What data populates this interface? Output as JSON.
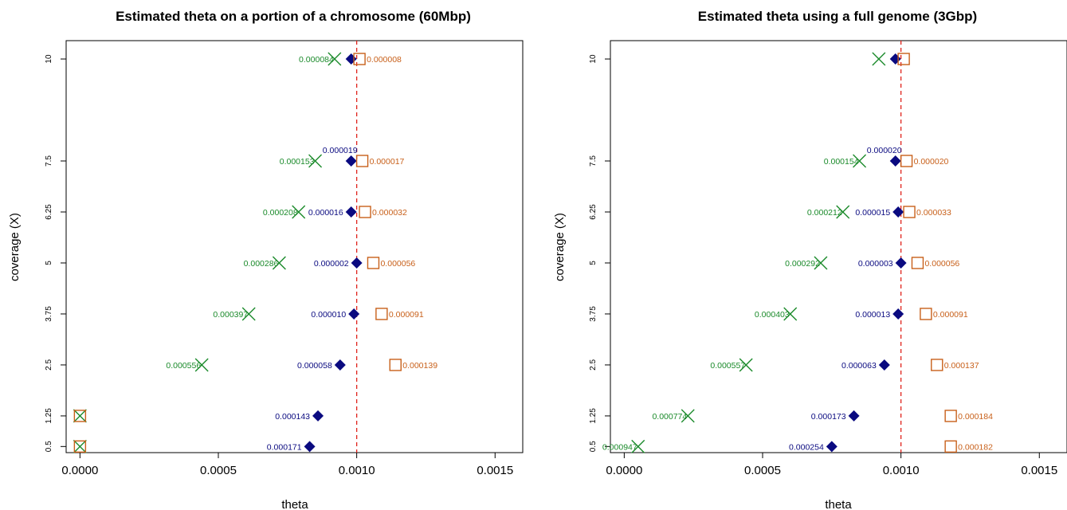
{
  "colors": {
    "green": "#1a8a2a",
    "blue": "#1a1aa0",
    "navy": "#0a0a80",
    "orange": "#c8601a",
    "reference": "#e0231c"
  },
  "chart_data": [
    {
      "type": "scatter",
      "title": "Estimated theta on a portion of a chromosome (60Mbp)",
      "xlabel": "theta",
      "ylabel": "coverage (X)",
      "xlim": [
        -5e-05,
        0.0016
      ],
      "ylim": [
        0.35,
        10.45
      ],
      "xticks": [
        0.0,
        0.0005,
        0.001,
        0.0015
      ],
      "xtick_labels": [
        "0.0000",
        "0.0005",
        "0.0010",
        "0.0015"
      ],
      "yticks": [
        0.5,
        1.25,
        2.5,
        3.75,
        5,
        6.25,
        7.5,
        10
      ],
      "ytick_labels": [
        "0.5",
        "1.25",
        "2.5",
        "3.75",
        "5",
        "6.25",
        "7.5",
        "10"
      ],
      "reference_line": {
        "x": 0.001,
        "style": "dashed"
      },
      "series": [
        {
          "marker": "x",
          "color_key": "green",
          "points": [
            {
              "y": 10,
              "x": 0.00092,
              "label": "0.000084"
            },
            {
              "y": 7.5,
              "x": 0.00085,
              "label": "0.000153"
            },
            {
              "y": 6.25,
              "x": 0.00079,
              "label": "0.000208"
            },
            {
              "y": 5,
              "x": 0.00072,
              "label": "0.000286"
            },
            {
              "y": 3.75,
              "x": 0.00061,
              "label": "0.000397"
            },
            {
              "y": 2.5,
              "x": 0.00044,
              "label": "0.000556"
            },
            {
              "y": 1.25,
              "x": 0.0,
              "label": ""
            },
            {
              "y": 0.5,
              "x": 0.0,
              "label": ""
            }
          ]
        },
        {
          "marker": "diamond",
          "color_key": "navy",
          "points": [
            {
              "y": 10,
              "x": 0.00098,
              "label": ""
            },
            {
              "y": 7.5,
              "x": 0.00098,
              "label": "0.000019"
            },
            {
              "y": 6.25,
              "x": 0.00098,
              "label": "0.000016"
            },
            {
              "y": 5,
              "x": 0.001,
              "label": "0.000002"
            },
            {
              "y": 3.75,
              "x": 0.00099,
              "label": "0.000010"
            },
            {
              "y": 2.5,
              "x": 0.00094,
              "label": "0.000058"
            },
            {
              "y": 1.25,
              "x": 0.00086,
              "label": "0.000143"
            },
            {
              "y": 0.5,
              "x": 0.00083,
              "label": "0.000171"
            }
          ]
        },
        {
          "marker": "square",
          "color_key": "orange",
          "points": [
            {
              "y": 10,
              "x": 0.00101,
              "label": "0.000008"
            },
            {
              "y": 7.5,
              "x": 0.00102,
              "label": "0.000017"
            },
            {
              "y": 6.25,
              "x": 0.00103,
              "label": "0.000032"
            },
            {
              "y": 5,
              "x": 0.00106,
              "label": "0.000056"
            },
            {
              "y": 3.75,
              "x": 0.00109,
              "label": "0.000091"
            },
            {
              "y": 2.5,
              "x": 0.00114,
              "label": "0.000139"
            },
            {
              "y": 1.25,
              "x": 0.0,
              "label": ""
            },
            {
              "y": 0.5,
              "x": 0.0,
              "label": ""
            }
          ]
        }
      ]
    },
    {
      "type": "scatter",
      "title": "Estimated theta using a full genome (3Gbp)",
      "xlabel": "theta",
      "ylabel": "coverage (X)",
      "xlim": [
        -5e-05,
        0.0016
      ],
      "ylim": [
        0.35,
        10.45
      ],
      "xticks": [
        0.0,
        0.0005,
        0.001,
        0.0015
      ],
      "xtick_labels": [
        "0.0000",
        "0.0005",
        "0.0010",
        "0.0015"
      ],
      "yticks": [
        0.5,
        1.25,
        2.5,
        3.75,
        5,
        6.25,
        7.5,
        10
      ],
      "ytick_labels": [
        "0.5",
        "1.25",
        "2.5",
        "3.75",
        "5",
        "6.25",
        "7.5",
        "10"
      ],
      "reference_line": {
        "x": 0.001,
        "style": "dashed"
      },
      "series": [
        {
          "marker": "x",
          "color_key": "green",
          "points": [
            {
              "y": 10,
              "x": 0.00092,
              "label": ""
            },
            {
              "y": 7.5,
              "x": 0.00085,
              "label": "0.000154"
            },
            {
              "y": 6.25,
              "x": 0.00079,
              "label": "0.000212"
            },
            {
              "y": 5,
              "x": 0.00071,
              "label": "0.000292"
            },
            {
              "y": 3.75,
              "x": 0.0006,
              "label": "0.000403"
            },
            {
              "y": 2.5,
              "x": 0.00044,
              "label": "0.000557"
            },
            {
              "y": 1.25,
              "x": 0.00023,
              "label": "0.000774"
            },
            {
              "y": 0.5,
              "x": 5e-05,
              "label": "0.000947"
            }
          ]
        },
        {
          "marker": "diamond",
          "color_key": "navy",
          "points": [
            {
              "y": 10,
              "x": 0.00098,
              "label": ""
            },
            {
              "y": 7.5,
              "x": 0.00098,
              "label": "0.000020"
            },
            {
              "y": 6.25,
              "x": 0.00099,
              "label": "0.000015"
            },
            {
              "y": 5,
              "x": 0.001,
              "label": "0.000003"
            },
            {
              "y": 3.75,
              "x": 0.00099,
              "label": "0.000013"
            },
            {
              "y": 2.5,
              "x": 0.00094,
              "label": "0.000063"
            },
            {
              "y": 1.25,
              "x": 0.00083,
              "label": "0.000173"
            },
            {
              "y": 0.5,
              "x": 0.00075,
              "label": "0.000254"
            }
          ]
        },
        {
          "marker": "square",
          "color_key": "orange",
          "points": [
            {
              "y": 10,
              "x": 0.00101,
              "label": ""
            },
            {
              "y": 7.5,
              "x": 0.00102,
              "label": "0.000020"
            },
            {
              "y": 6.25,
              "x": 0.00103,
              "label": "0.000033"
            },
            {
              "y": 5,
              "x": 0.00106,
              "label": "0.000056"
            },
            {
              "y": 3.75,
              "x": 0.00109,
              "label": "0.000091"
            },
            {
              "y": 2.5,
              "x": 0.00113,
              "label": "0.000137"
            },
            {
              "y": 1.25,
              "x": 0.00118,
              "label": "0.000184"
            },
            {
              "y": 0.5,
              "x": 0.00118,
              "label": "0.000182"
            }
          ]
        }
      ]
    }
  ]
}
